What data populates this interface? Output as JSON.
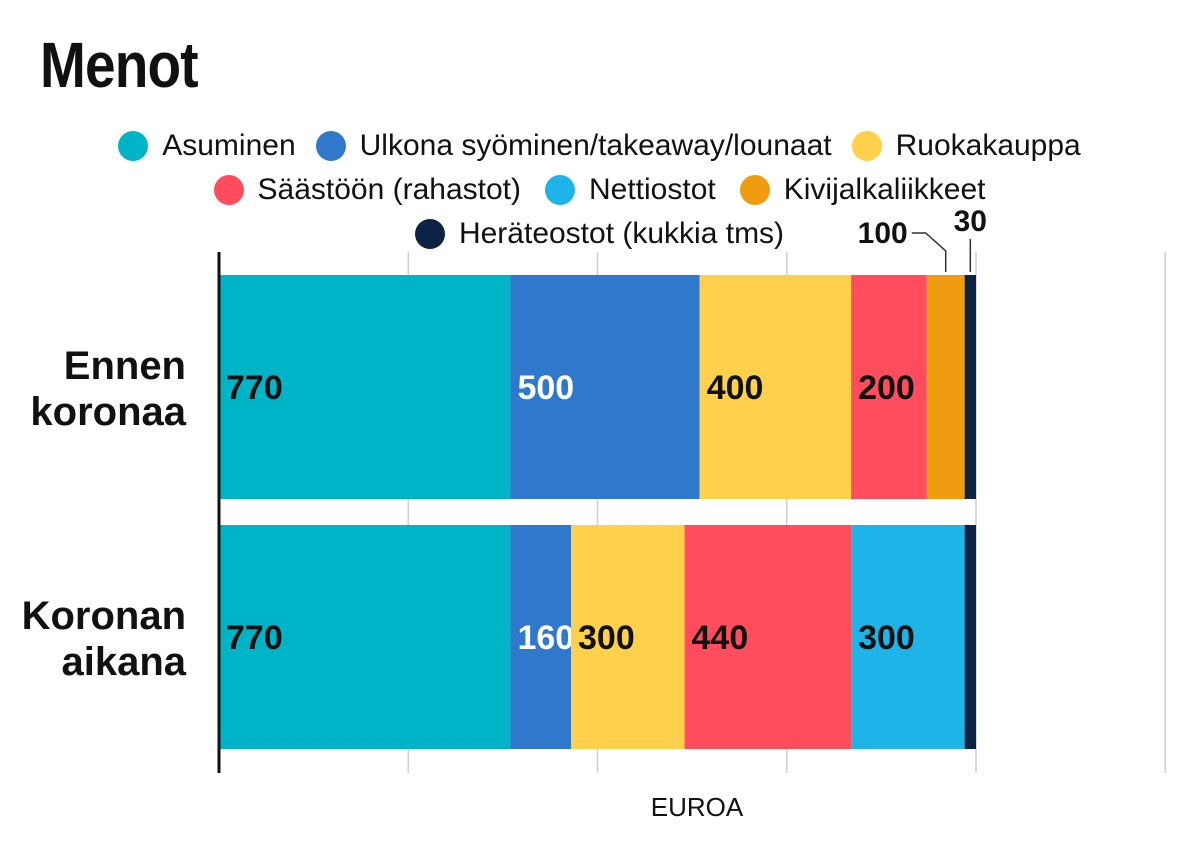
{
  "chart_data": {
    "type": "bar",
    "orientation": "horizontal",
    "stacked": true,
    "title": "Menot",
    "xlabel": "EUROA",
    "ylabel": "",
    "xlim": [
      0,
      2500
    ],
    "x_gridlines": [
      500,
      1000,
      1500,
      2000,
      2500
    ],
    "grid": true,
    "categories": [
      "Ennen koronaa",
      "Koronan aikana"
    ],
    "category_label_lines": [
      [
        "Ennen",
        "koronaa"
      ],
      [
        "Koronan",
        "aikana"
      ]
    ],
    "series": [
      {
        "name": "Asuminen",
        "color": "#00b4c8",
        "values": [
          770,
          770
        ],
        "labels": [
          "770",
          "770"
        ],
        "label_color": "#111111"
      },
      {
        "name": "Ulkona syöminen/takeaway/lounaat",
        "color": "#3078cc",
        "values": [
          500,
          160
        ],
        "labels": [
          "500",
          "160"
        ],
        "label_color": "#ffffff"
      },
      {
        "name": "Ruokakauppa",
        "color": "#fed04b",
        "values": [
          400,
          300
        ],
        "labels": [
          "400",
          "300"
        ],
        "label_color": "#111111"
      },
      {
        "name": "Säästöön (rahastot)",
        "color": "#ff4d5e",
        "values": [
          200,
          440
        ],
        "labels": [
          "200",
          "440"
        ],
        "label_color": "#111111"
      },
      {
        "name": "Nettiostot",
        "color": "#1fb4e8",
        "values": [
          0,
          300
        ],
        "labels": [
          "",
          "300"
        ],
        "label_color": "#111111"
      },
      {
        "name": "Kivijalkaliikkeet",
        "color": "#f09c10",
        "values": [
          100,
          0
        ],
        "labels": [
          "",
          ""
        ],
        "label_color": "#111111"
      },
      {
        "name": "Heräteostot (kukkia tms)",
        "color": "#0c2346",
        "values": [
          30,
          30
        ],
        "labels": [
          "",
          ""
        ],
        "label_color": "#111111"
      }
    ],
    "callouts": [
      {
        "series": 5,
        "category": 0,
        "text": "100"
      },
      {
        "series": 6,
        "category": 0,
        "text": "30"
      }
    ],
    "legend_rows": [
      [
        0,
        1,
        2
      ],
      [
        3,
        4,
        5
      ],
      [
        6
      ]
    ],
    "legend_position": "top"
  }
}
